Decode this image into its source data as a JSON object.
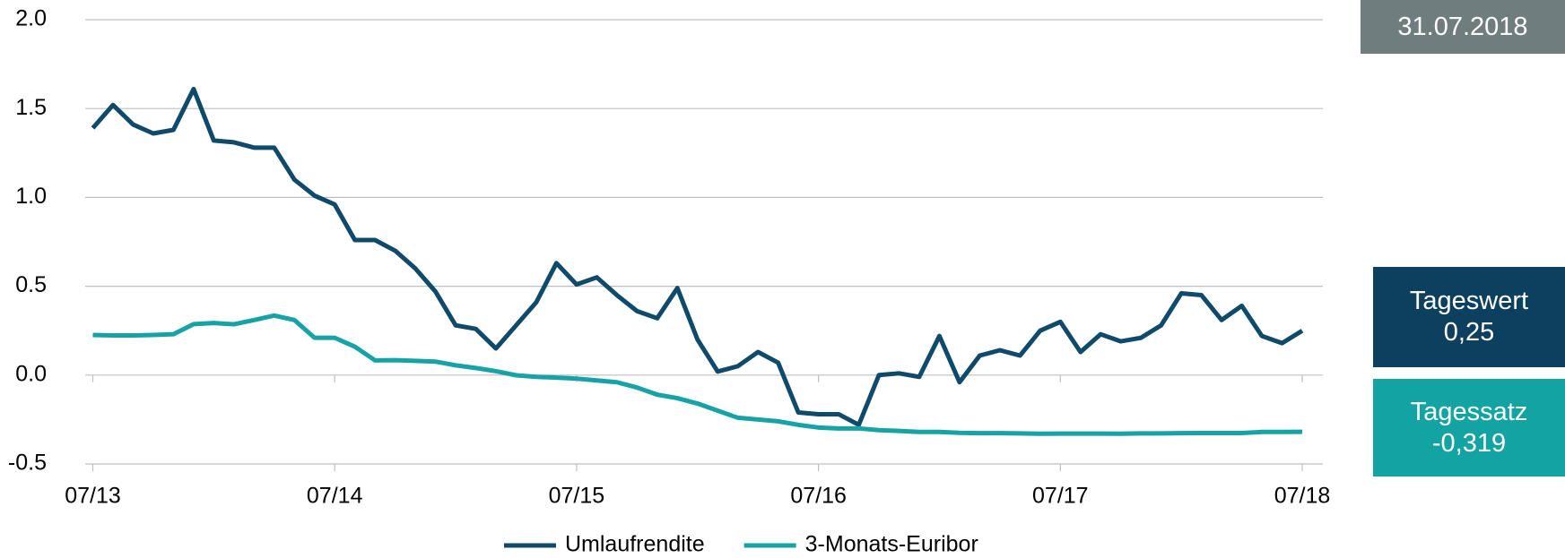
{
  "chart_data": {
    "type": "line",
    "date": "31.07.2018",
    "annotations": [
      {
        "text": "Tageswert",
        "value_label": "0,25",
        "color": "#0d3f5e"
      },
      {
        "text": "Tagessatz",
        "value_label": "-0,319",
        "color": "#13a3a3"
      }
    ],
    "categories": [
      "07/13",
      null,
      null,
      null,
      null,
      null,
      null,
      null,
      null,
      null,
      null,
      null,
      "07/14",
      null,
      null,
      null,
      null,
      null,
      null,
      null,
      null,
      null,
      null,
      null,
      "07/15",
      null,
      null,
      null,
      null,
      null,
      null,
      null,
      null,
      null,
      null,
      null,
      "07/16",
      null,
      null,
      null,
      null,
      null,
      null,
      null,
      null,
      null,
      null,
      null,
      "07/17",
      null,
      null,
      null,
      null,
      null,
      null,
      null,
      null,
      null,
      null,
      null,
      "07/18"
    ],
    "series": [
      {
        "name": "Umlaufrendite",
        "color": "#0f4a6a",
        "values": [
          1.39,
          1.52,
          1.41,
          1.36,
          1.38,
          1.61,
          1.32,
          1.31,
          1.28,
          1.28,
          1.1,
          1.01,
          0.96,
          0.76,
          0.76,
          0.7,
          0.6,
          0.47,
          0.28,
          0.26,
          0.15,
          0.28,
          0.41,
          0.63,
          0.51,
          0.55,
          0.45,
          0.36,
          0.32,
          0.49,
          0.2,
          0.02,
          0.05,
          0.13,
          0.07,
          -0.21,
          -0.22,
          -0.22,
          -0.28,
          0.0,
          0.01,
          -0.01,
          0.22,
          -0.04,
          0.11,
          0.14,
          0.11,
          0.25,
          0.3,
          0.13,
          0.23,
          0.19,
          0.21,
          0.28,
          0.46,
          0.45,
          0.31,
          0.39,
          0.22,
          0.18,
          0.25
        ]
      },
      {
        "name": "3-Monats-Euribor",
        "color": "#17a3a6",
        "values": [
          0.226,
          0.223,
          0.223,
          0.226,
          0.23,
          0.287,
          0.293,
          0.286,
          0.31,
          0.335,
          0.31,
          0.21,
          0.21,
          0.16,
          0.083,
          0.084,
          0.08,
          0.076,
          0.055,
          0.04,
          0.022,
          -0.001,
          -0.01,
          -0.014,
          -0.02,
          -0.03,
          -0.04,
          -0.07,
          -0.11,
          -0.13,
          -0.16,
          -0.2,
          -0.24,
          -0.25,
          -0.26,
          -0.28,
          -0.295,
          -0.3,
          -0.3,
          -0.31,
          -0.314,
          -0.32,
          -0.32,
          -0.325,
          -0.327,
          -0.327,
          -0.328,
          -0.33,
          -0.329,
          -0.329,
          -0.329,
          -0.33,
          -0.328,
          -0.328,
          -0.327,
          -0.326,
          -0.326,
          -0.326,
          -0.32,
          -0.32,
          -0.319
        ]
      }
    ],
    "ylim": [
      -0.5,
      2
    ],
    "yticks": [
      -0.5,
      {
        "value": 0,
        "label": "0.0"
      },
      0.5,
      {
        "value": 1,
        "label": "1.0"
      },
      1.5,
      {
        "value": 2,
        "label": "2.0"
      }
    ],
    "grid": true
  }
}
